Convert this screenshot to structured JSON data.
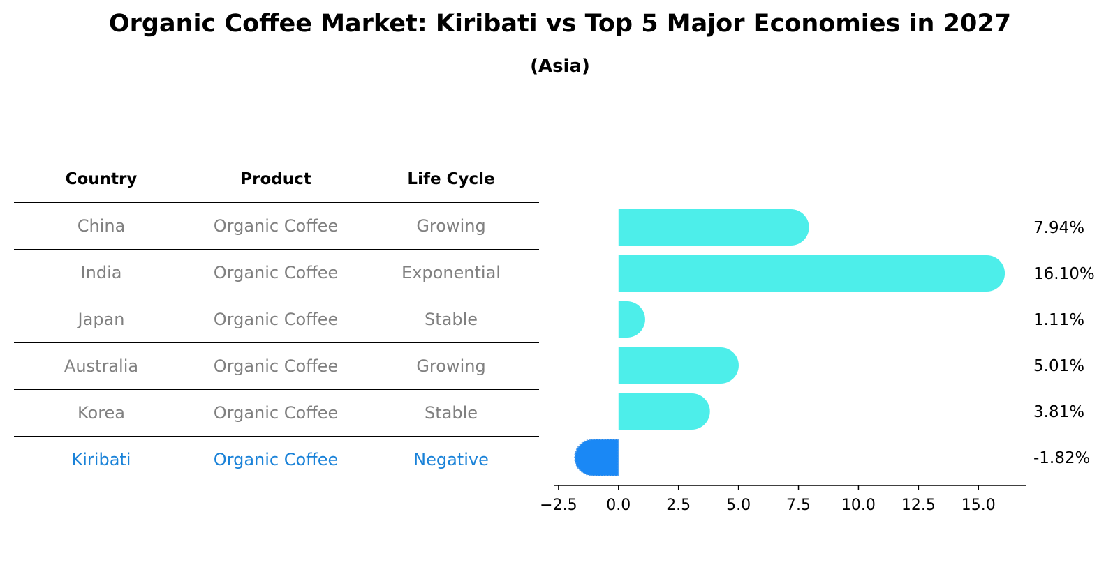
{
  "title": "Organic Coffee Market: Kiribati vs Top 5 Major Economies in 2027",
  "subtitle": "(Asia)",
  "table": {
    "headers": [
      "Country",
      "Product",
      "Life Cycle"
    ],
    "rows": [
      [
        "China",
        "Organic Coffee",
        "Growing"
      ],
      [
        "India",
        "Organic Coffee",
        "Exponential"
      ],
      [
        "Japan",
        "Organic Coffee",
        "Stable"
      ],
      [
        "Australia",
        "Organic Coffee",
        "Growing"
      ],
      [
        "Korea",
        "Organic Coffee",
        "Stable"
      ],
      [
        "Kiribati",
        "Organic Coffee",
        "Negative"
      ]
    ],
    "highlight_row": 5
  },
  "chart_data": {
    "type": "bar",
    "orientation": "horizontal",
    "categories": [
      "China",
      "India",
      "Japan",
      "Australia",
      "Korea",
      "Kiribati"
    ],
    "values": [
      7.94,
      16.1,
      1.11,
      5.01,
      3.81,
      -1.82
    ],
    "value_labels": [
      "7.94%",
      "16.10%",
      "1.11%",
      "5.01%",
      "3.81%",
      "-1.82%"
    ],
    "xlim": [
      -2.7,
      17.0
    ],
    "xticks": [
      -2.5,
      0.0,
      2.5,
      5.0,
      7.5,
      10.0,
      12.5,
      15.0
    ],
    "xtick_labels": [
      "−2.5",
      "0.0",
      "2.5",
      "5.0",
      "7.5",
      "10.0",
      "12.5",
      "15.0"
    ],
    "colors": {
      "default": "#4deeea",
      "highlight": "#1a88f5"
    },
    "highlight_index": 5,
    "grid": false
  }
}
